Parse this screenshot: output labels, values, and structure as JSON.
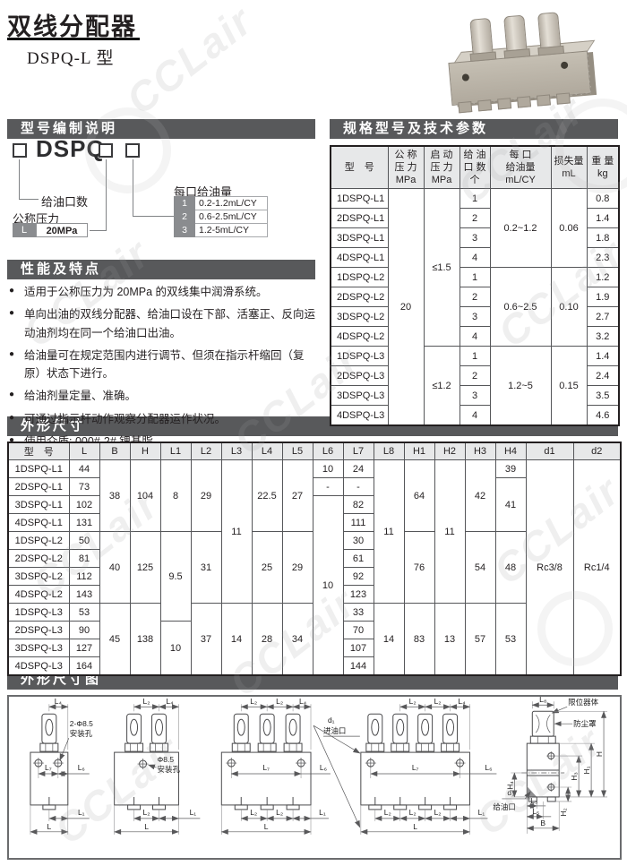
{
  "page": {
    "title": "双线分配器",
    "subtitle": "DSPQ-L 型",
    "watermark": "CCLair"
  },
  "sections": {
    "model_code": "型号编制说明",
    "specs": "规格型号及技术参数",
    "features": "性能及特点",
    "dims": "外形尺寸",
    "dim_drawing": "外形尺寸图"
  },
  "model_code": {
    "prefix_label": "DSPQ-",
    "ports_label": "给油口数",
    "pressure_label": "公称压力",
    "pressure_code": "L",
    "pressure_value": "20MPa",
    "per_port_label": "每口给油量",
    "per_port_options": [
      {
        "code": "1",
        "value": "0.2-1.2mL/CY"
      },
      {
        "code": "2",
        "value": "0.6-2.5mL/CY"
      },
      {
        "code": "3",
        "value": "1.2-5mL/CY"
      }
    ]
  },
  "spec_table": {
    "headers": [
      "型　号",
      "公 称\n压 力\nMPa",
      "启 动\n压 力\nMPa",
      "给 油\n口 数\n个",
      "每 口\n给油量\nmL/CY",
      "损失量\nmL",
      "重 量\nkg"
    ],
    "rows": [
      [
        "1DSPQ-L1",
        {
          "t": "20",
          "rs": 12
        },
        {
          "t": "≤1.5",
          "rs": 8
        },
        "1",
        {
          "t": "0.2~1.2",
          "rs": 4
        },
        {
          "t": "0.06",
          "rs": 4
        },
        "0.8"
      ],
      [
        "2DSPQ-L1",
        "2",
        "1.4"
      ],
      [
        "3DSPQ-L1",
        "3",
        "1.8"
      ],
      [
        "4DSPQ-L1",
        "4",
        "2.3"
      ],
      [
        "1DSPQ-L2",
        "1",
        {
          "t": "0.6~2.5",
          "rs": 4
        },
        {
          "t": "0.10",
          "rs": 4
        },
        "1.2"
      ],
      [
        "2DSPQ-L2",
        "2",
        "1.9"
      ],
      [
        "3DSPQ-L2",
        "3",
        "2.7"
      ],
      [
        "4DSPQ-L2",
        "4",
        "3.2"
      ],
      [
        "1DSPQ-L3",
        {
          "t": "≤1.2",
          "rs": 4
        },
        "1",
        {
          "t": "1.2~5",
          "rs": 4
        },
        {
          "t": "0.15",
          "rs": 4
        },
        "1.4"
      ],
      [
        "2DSPQ-L3",
        "2",
        "2.4"
      ],
      [
        "3DSPQ-L3",
        "3",
        "3.5"
      ],
      [
        "4DSPQ-L3",
        "4",
        "4.6"
      ]
    ]
  },
  "features": [
    "适用于公称压力为 20MPa 的双线集中润滑系统。",
    "单向出油的双线分配器、给油口设在下部、活塞正、反向运动油剂均在同一个给油口出油。",
    "给油量可在规定范围内进行调节、但须在指示杆缩回（复原）状态下进行。",
    "给油剂量定量、准确。",
    "可通过指示杆动作观察分配器运作状况。",
    "使用介质: 000#-2# 锂基脂。"
  ],
  "dim_table": {
    "headers": [
      "型　号",
      "L",
      "B",
      "H",
      "L1",
      "L2",
      "L3",
      "L4",
      "L5",
      "L6",
      "L7",
      "L8",
      "H1",
      "H2",
      "H3",
      "H4",
      "d1",
      "d2"
    ],
    "rows": [
      [
        "1DSPQ-L1",
        "44",
        {
          "t": "38",
          "rs": 4
        },
        {
          "t": "104",
          "rs": 4
        },
        {
          "t": "8",
          "rs": 4
        },
        {
          "t": "29",
          "rs": 4
        },
        {
          "t": "11",
          "rs": 8
        },
        {
          "t": "22.5",
          "rs": 4
        },
        {
          "t": "27",
          "rs": 4
        },
        "10",
        "24",
        {
          "t": "11",
          "rs": 8
        },
        {
          "t": "64",
          "rs": 4
        },
        {
          "t": "11",
          "rs": 8
        },
        {
          "t": "42",
          "rs": 4
        },
        "39",
        {
          "t": "Rc3/8",
          "rs": 12
        },
        {
          "t": "Rc1/4",
          "rs": 12
        }
      ],
      [
        "2DSPQ-L1",
        "73",
        "-",
        "-",
        {
          "t": "41",
          "rs": 3
        }
      ],
      [
        "3DSPQ-L1",
        "102",
        {
          "t": "10",
          "rs": 10
        },
        "82"
      ],
      [
        "4DSPQ-L1",
        "131",
        "111"
      ],
      [
        "1DSPQ-L2",
        "50",
        {
          "t": "40",
          "rs": 4
        },
        {
          "t": "125",
          "rs": 4
        },
        {
          "t": "9.5",
          "rs": 5
        },
        {
          "t": "31",
          "rs": 4
        },
        {
          "t": "25",
          "rs": 4
        },
        {
          "t": "29",
          "rs": 4
        },
        "30",
        {
          "t": "76",
          "rs": 4
        },
        {
          "t": "54",
          "rs": 4
        },
        {
          "t": "48",
          "rs": 4
        }
      ],
      [
        "2DSPQ-L2",
        "81",
        "61"
      ],
      [
        "3DSPQ-L2",
        "112",
        "92"
      ],
      [
        "4DSPQ-L2",
        "143",
        "123"
      ],
      [
        "1DSPQ-L3",
        "53",
        {
          "t": "45",
          "rs": 4
        },
        {
          "t": "138",
          "rs": 4
        },
        {
          "t": "37",
          "rs": 4
        },
        {
          "t": "14",
          "rs": 4
        },
        {
          "t": "28",
          "rs": 4
        },
        {
          "t": "34",
          "rs": 4
        },
        "33",
        {
          "t": "14",
          "rs": 4
        },
        {
          "t": "83",
          "rs": 4
        },
        {
          "t": "13",
          "rs": 4
        },
        {
          "t": "57",
          "rs": 4
        },
        {
          "t": "53",
          "rs": 4
        }
      ],
      [
        "2DSPQ-L3",
        "90",
        {
          "t": "10",
          "rs": 3
        },
        "70"
      ],
      [
        "3DSPQ-L3",
        "127",
        "107"
      ],
      [
        "4DSPQ-L3",
        "164",
        "144"
      ]
    ]
  },
  "drawing": {
    "v1": {
      "l4": "L₄",
      "note1": "2-Φ8.5",
      "note2": "安装孔",
      "l7": "L₇",
      "l6": "L₆",
      "l1": "L₁",
      "l": "L"
    },
    "v2": {
      "l2": "L₂",
      "l4": "L₄",
      "note1": "Φ8.5",
      "note2": "安装孔",
      "b_l2": "L₂",
      "l1": "L₁",
      "l": "L"
    },
    "v3": {
      "t_l2a": "L₂",
      "t_l2b": "L₂",
      "l4": "L₄",
      "l7": "L₇",
      "l6": "L₆",
      "b_l2a": "L₂",
      "b_l2b": "L₂",
      "l1": "L₁",
      "l": "L"
    },
    "v4": {
      "t_l2a": "L₂",
      "t_l2b": "L₂",
      "l4": "L₄",
      "d1": "d₁",
      "inlet": "进油口",
      "l7": "L₇",
      "l6": "L₆",
      "b_l2a": "L₂",
      "b_l2b": "L₂",
      "b_l2c": "L₂",
      "l1": "L₁",
      "l": "L"
    },
    "sv": {
      "l8": "L₈",
      "limiter": "限位器体",
      "dust": "防尘罩",
      "h": "H",
      "h1": "H₁",
      "h3": "H₃",
      "h4": "H₄",
      "h2": "H₂",
      "d2": "d₂",
      "outlet": "给油口",
      "l3": "L₃",
      "l5": "L₅",
      "b": "B"
    }
  },
  "colors": {
    "section_bar": "#58595b",
    "table_header_bg": "#e7e8e9",
    "code_cell_bg": "#8a8c8f"
  }
}
